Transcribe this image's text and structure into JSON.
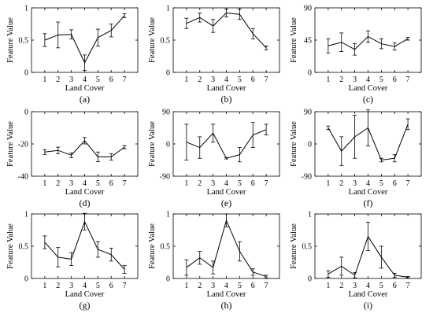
{
  "chart_data": [
    {
      "type": "line",
      "caption": "(a)",
      "xlabel": "Land Cover",
      "ylabel": "Feature Value",
      "x": [
        1,
        2,
        3,
        4,
        5,
        6,
        7
      ],
      "xlim": [
        0,
        8
      ],
      "ylim": [
        0,
        1
      ],
      "yticks": [
        "0",
        "0.5",
        "1"
      ],
      "ytick_values": [
        0,
        0.5,
        1
      ],
      "series": [
        {
          "values": [
            0.5,
            0.58,
            0.59,
            0.15,
            0.54,
            0.65,
            0.88
          ],
          "errors": [
            0.1,
            0.2,
            0.07,
            0.12,
            0.13,
            0.1,
            0.03
          ]
        }
      ]
    },
    {
      "type": "line",
      "caption": "(b)",
      "xlabel": "Land Cover",
      "ylabel": "Feature Value",
      "x": [
        1,
        2,
        3,
        4,
        5,
        6,
        7
      ],
      "xlim": [
        0,
        8
      ],
      "ylim": [
        0,
        1
      ],
      "yticks": [
        "0",
        "0.5",
        "1"
      ],
      "ytick_values": [
        0,
        0.5,
        1
      ],
      "series": [
        {
          "values": [
            0.76,
            0.85,
            0.72,
            0.92,
            0.9,
            0.6,
            0.38
          ],
          "errors": [
            0.08,
            0.07,
            0.1,
            0.06,
            0.08,
            0.08,
            0.03
          ]
        }
      ]
    },
    {
      "type": "line",
      "caption": "(c)",
      "xlabel": "Land Cover",
      "ylabel": "Feature Value",
      "x": [
        1,
        2,
        3,
        4,
        5,
        6,
        7
      ],
      "xlim": [
        0,
        8
      ],
      "ylim": [
        0,
        90
      ],
      "yticks": [
        "0",
        "45",
        "90"
      ],
      "ytick_values": [
        0,
        45,
        90
      ],
      "series": [
        {
          "values": [
            37,
            42,
            32,
            50,
            40,
            36,
            47
          ],
          "errors": [
            10,
            13,
            8,
            8,
            7,
            5,
            2
          ]
        }
      ]
    },
    {
      "type": "line",
      "caption": "(d)",
      "xlabel": "Land Cover",
      "ylabel": "Feature Value",
      "x": [
        1,
        2,
        3,
        4,
        5,
        6,
        7
      ],
      "xlim": [
        0,
        8
      ],
      "ylim": [
        -40,
        0
      ],
      "yticks": [
        "-40",
        "-20",
        "0"
      ],
      "ytick_values": [
        -40,
        -20,
        0
      ],
      "series": [
        {
          "values": [
            -25,
            -24,
            -27,
            -18,
            -28,
            -28,
            -22
          ],
          "errors": [
            1.5,
            2,
            1.5,
            2,
            3,
            2,
            1
          ]
        }
      ]
    },
    {
      "type": "line",
      "caption": "(e)",
      "xlabel": "Land Cover",
      "ylabel": "Feature Value",
      "x": [
        1,
        2,
        3,
        4,
        5,
        6,
        7
      ],
      "xlim": [
        0,
        8
      ],
      "ylim": [
        -90,
        90
      ],
      "yticks": [
        "-90",
        "0",
        "90"
      ],
      "ytick_values": [
        -90,
        0,
        90
      ],
      "series": [
        {
          "values": [
            5,
            -10,
            30,
            -40,
            -30,
            25,
            40
          ],
          "errors": [
            50,
            30,
            25,
            2,
            20,
            35,
            15
          ]
        }
      ]
    },
    {
      "type": "line",
      "caption": "(f)",
      "xlabel": "Land Cover",
      "ylabel": "Feature Value",
      "x": [
        1,
        2,
        3,
        4,
        5,
        6,
        7
      ],
      "xlim": [
        0,
        8
      ],
      "ylim": [
        -90,
        90
      ],
      "yticks": [
        "-90",
        "0",
        "90"
      ],
      "ytick_values": [
        -90,
        0,
        90
      ],
      "series": [
        {
          "values": [
            45,
            -20,
            20,
            45,
            -45,
            -40,
            55
          ],
          "errors": [
            5,
            40,
            60,
            50,
            5,
            10,
            15
          ]
        }
      ]
    },
    {
      "type": "line",
      "caption": "(g)",
      "xlabel": "Land Cover",
      "ylabel": "Feature Value",
      "x": [
        1,
        2,
        3,
        4,
        5,
        6,
        7
      ],
      "xlim": [
        0,
        8
      ],
      "ylim": [
        0,
        1
      ],
      "yticks": [
        "0",
        "0.5",
        "1"
      ],
      "ytick_values": [
        0,
        0.5,
        1
      ],
      "series": [
        {
          "values": [
            0.56,
            0.33,
            0.3,
            0.88,
            0.45,
            0.37,
            0.14
          ],
          "errors": [
            0.1,
            0.15,
            0.1,
            0.13,
            0.12,
            0.1,
            0.06
          ]
        }
      ]
    },
    {
      "type": "line",
      "caption": "(h)",
      "xlabel": "Land Cover",
      "ylabel": "Feature Value",
      "x": [
        1,
        2,
        3,
        4,
        5,
        6,
        7
      ],
      "xlim": [
        0,
        8
      ],
      "ylim": [
        0,
        1
      ],
      "yticks": [
        "0",
        "0.5",
        "1"
      ],
      "ytick_values": [
        0,
        0.5,
        1
      ],
      "series": [
        {
          "values": [
            0.17,
            0.32,
            0.17,
            0.9,
            0.42,
            0.1,
            0.03
          ],
          "errors": [
            0.12,
            0.1,
            0.1,
            0.1,
            0.15,
            0.05,
            0.02
          ]
        }
      ]
    },
    {
      "type": "line",
      "caption": "(i)",
      "xlabel": "Land Cover",
      "ylabel": "Feature Value",
      "x": [
        1,
        2,
        3,
        4,
        5,
        6,
        7
      ],
      "xlim": [
        0,
        8
      ],
      "ylim": [
        0,
        1
      ],
      "yticks": [
        "0",
        "0.5",
        "1"
      ],
      "ytick_values": [
        0,
        0.5,
        1
      ],
      "series": [
        {
          "values": [
            0.07,
            0.19,
            0.05,
            0.65,
            0.33,
            0.05,
            0.02
          ],
          "errors": [
            0.05,
            0.14,
            0.04,
            0.22,
            0.17,
            0.03,
            0.01
          ]
        }
      ]
    }
  ]
}
